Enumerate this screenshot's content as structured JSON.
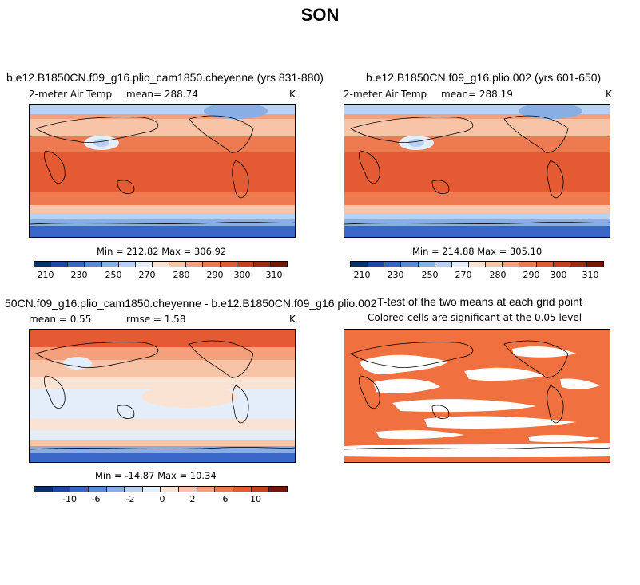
{
  "figure_title": "SON",
  "panels": [
    {
      "title": "b.e12.B1850CN.f09_g16.plio_cam1850.cheyenne (yrs 831-880)",
      "variable": "2-meter Air Temp",
      "mean_text": "mean= 288.74",
      "units": "K",
      "minmax": "Min = 212.82 Max = 306.92",
      "colorbar_ticks": [
        "210",
        "230",
        "250",
        "270",
        "280",
        "290",
        "300",
        "310"
      ]
    },
    {
      "title": "b.e12.B1850CN.f09_g16.plio.002 (yrs 601-650)",
      "variable": "2-meter Air Temp",
      "mean_text": "mean= 288.19",
      "units": "K",
      "minmax": "Min = 214.88 Max = 305.10",
      "colorbar_ticks": [
        "210",
        "230",
        "250",
        "270",
        "280",
        "290",
        "300",
        "310"
      ]
    },
    {
      "title": "50CN.f09_g16.plio_cam1850.cheyenne - b.e12.B1850CN.f09_g16.plio.002",
      "mean_text": "mean =   0.55",
      "rmse_text": "rmse =   1.58",
      "units": "K",
      "minmax": "Min = -14.87 Max =  10.34",
      "colorbar_ticks": [
        "-10",
        "-6",
        "-2",
        "0",
        "2",
        "6",
        "10"
      ]
    },
    {
      "title": "T-test of the two means at each grid point",
      "subtitle": "Colored cells are significant at the 0.05 level"
    }
  ],
  "colors": {
    "abs_scale": [
      "#08306b",
      "#1e46a8",
      "#3a66c8",
      "#5d8ad8",
      "#88aee6",
      "#b8d0f2",
      "#e4eefa",
      "#fbe3d4",
      "#f8c4a8",
      "#f4a07c",
      "#ee7a52",
      "#e45a32",
      "#c8401e",
      "#a02a10",
      "#7a1406"
    ],
    "diff_scale": [
      "#08306b",
      "#1e46a8",
      "#3a66c8",
      "#5d8ad8",
      "#88aee6",
      "#b8d0f2",
      "#e4eefa",
      "#fbe3d4",
      "#f8c4a8",
      "#f4a07c",
      "#ee7a52",
      "#e45a32",
      "#c8401e",
      "#7a1406"
    ],
    "ttest_fill": "#f07040"
  }
}
